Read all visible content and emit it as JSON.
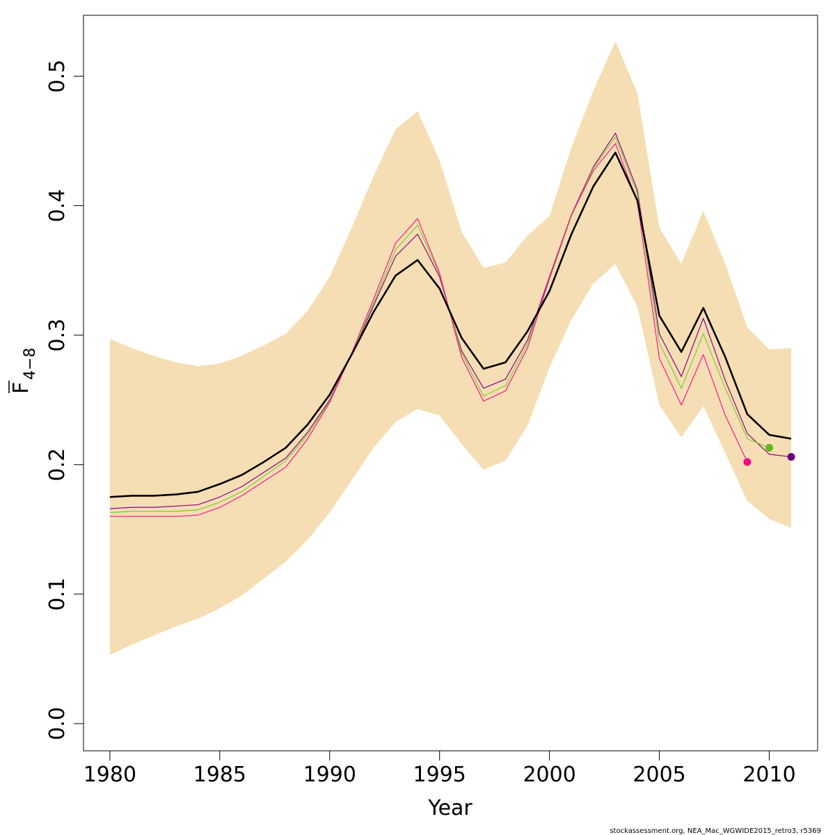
{
  "chart_data": {
    "type": "line",
    "xlabel": "Year",
    "ylabel_main": "F",
    "ylabel_sub": "4−8",
    "xlim": [
      1978.8,
      2012.2
    ],
    "ylim": [
      -0.021,
      0.547
    ],
    "xticks": [
      1980,
      1985,
      1990,
      1995,
      2000,
      2005,
      2010
    ],
    "yticks": [
      0.0,
      0.1,
      0.2,
      0.3,
      0.4,
      0.5
    ],
    "ytick_labels": [
      "0.0",
      "0.1",
      "0.2",
      "0.3",
      "0.4",
      "0.5"
    ],
    "band": {
      "color": "#f5deb3",
      "years": [
        1980,
        1981,
        1982,
        1983,
        1984,
        1985,
        1986,
        1987,
        1988,
        1989,
        1990,
        1991,
        1992,
        1993,
        1994,
        1995,
        1996,
        1997,
        1998,
        1999,
        2000,
        2001,
        2002,
        2003,
        2004,
        2005,
        2006,
        2007,
        2008,
        2009,
        2010,
        2011
      ],
      "upper": [
        0.297,
        0.29,
        0.284,
        0.279,
        0.276,
        0.278,
        0.284,
        0.292,
        0.301,
        0.319,
        0.345,
        0.383,
        0.423,
        0.459,
        0.473,
        0.435,
        0.38,
        0.352,
        0.356,
        0.377,
        0.392,
        0.445,
        0.489,
        0.527,
        0.487,
        0.383,
        0.355,
        0.396,
        0.355,
        0.306,
        0.289,
        0.29
      ],
      "lower": [
        0.053,
        0.061,
        0.068,
        0.075,
        0.081,
        0.089,
        0.099,
        0.112,
        0.125,
        0.142,
        0.163,
        0.188,
        0.213,
        0.233,
        0.243,
        0.238,
        0.216,
        0.196,
        0.203,
        0.23,
        0.275,
        0.312,
        0.34,
        0.355,
        0.322,
        0.246,
        0.221,
        0.245,
        0.209,
        0.172,
        0.158,
        0.151
      ]
    },
    "series": [
      {
        "color": "#000000",
        "width": 2.6,
        "years": [
          1980,
          1981,
          1982,
          1983,
          1984,
          1985,
          1986,
          1987,
          1988,
          1989,
          1990,
          1991,
          1992,
          1993,
          1994,
          1995,
          1996,
          1997,
          1998,
          1999,
          2000,
          2001,
          2002,
          2003,
          2004,
          2005,
          2006,
          2007,
          2008,
          2009,
          2010,
          2011
        ],
        "values": [
          0.175,
          0.176,
          0.176,
          0.177,
          0.179,
          0.185,
          0.192,
          0.202,
          0.213,
          0.231,
          0.254,
          0.285,
          0.318,
          0.346,
          0.358,
          0.336,
          0.298,
          0.274,
          0.279,
          0.303,
          0.334,
          0.378,
          0.415,
          0.441,
          0.404,
          0.315,
          0.287,
          0.321,
          0.283,
          0.239,
          0.223,
          0.22
        ],
        "endpoint": false
      },
      {
        "color": "#8b008b",
        "width": 1.2,
        "years": [
          1980,
          1981,
          1982,
          1983,
          1984,
          1985,
          1986,
          1987,
          1988,
          1989,
          1990,
          1991,
          1992,
          1993,
          1994,
          1995,
          1996,
          1997,
          1998,
          1999,
          2000,
          2001,
          2002,
          2003,
          2004,
          2005,
          2006,
          2007,
          2008,
          2009,
          2010,
          2011
        ],
        "values": [
          0.166,
          0.167,
          0.167,
          0.168,
          0.169,
          0.175,
          0.183,
          0.194,
          0.205,
          0.225,
          0.25,
          0.285,
          0.323,
          0.361,
          0.378,
          0.345,
          0.288,
          0.259,
          0.266,
          0.296,
          0.345,
          0.393,
          0.43,
          0.456,
          0.412,
          0.301,
          0.268,
          0.313,
          0.265,
          0.224,
          0.208,
          0.206
        ],
        "endpoint": true,
        "point_color": "#6a0080"
      },
      {
        "color": "#7ccd2e",
        "width": 1.2,
        "years": [
          1980,
          1981,
          1982,
          1983,
          1984,
          1985,
          1986,
          1987,
          1988,
          1989,
          1990,
          1991,
          1992,
          1993,
          1994,
          1995,
          1996,
          1997,
          1998,
          1999,
          2000,
          2001,
          2002,
          2003,
          2004,
          2005,
          2006,
          2007,
          2008,
          2009,
          2010
        ],
        "values": [
          0.163,
          0.164,
          0.164,
          0.164,
          0.165,
          0.171,
          0.179,
          0.191,
          0.203,
          0.223,
          0.249,
          0.285,
          0.325,
          0.366,
          0.385,
          0.347,
          0.286,
          0.253,
          0.261,
          0.293,
          0.343,
          0.392,
          0.429,
          0.453,
          0.409,
          0.294,
          0.259,
          0.301,
          0.259,
          0.22,
          0.213
        ],
        "endpoint": true,
        "point_color": "#5fb81c"
      },
      {
        "color": "#ff1493",
        "width": 1.2,
        "years": [
          1980,
          1981,
          1982,
          1983,
          1984,
          1985,
          1986,
          1987,
          1988,
          1989,
          1990,
          1991,
          1992,
          1993,
          1994,
          1995,
          1996,
          1997,
          1998,
          1999,
          2000,
          2001,
          2002,
          2003,
          2004,
          2005,
          2006,
          2007,
          2008,
          2009
        ],
        "values": [
          0.16,
          0.16,
          0.16,
          0.16,
          0.161,
          0.167,
          0.176,
          0.187,
          0.198,
          0.22,
          0.248,
          0.286,
          0.328,
          0.371,
          0.39,
          0.348,
          0.283,
          0.249,
          0.257,
          0.29,
          0.344,
          0.393,
          0.427,
          0.448,
          0.403,
          0.282,
          0.246,
          0.285,
          0.238,
          0.202
        ],
        "endpoint": true,
        "point_color": "#ee0a8a"
      }
    ]
  },
  "footer_text": "stockassessment.org, NEA_Mac_WGWIDE2015_retro3, r5369"
}
